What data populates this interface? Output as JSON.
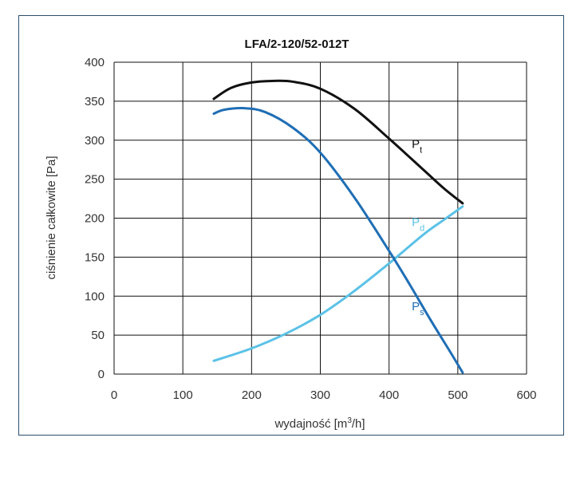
{
  "chart_data": {
    "type": "line",
    "title": "LFA/2-120/52-012T",
    "xlabel": "wydajność [m³/h]",
    "xlabel_parts": {
      "main": "wydajność [m",
      "sup": "3",
      "tail": "/h]"
    },
    "ylabel": "ciśnienie całkowite [Pa]",
    "xlim": [
      0,
      600
    ],
    "ylim": [
      0,
      400
    ],
    "x_ticks": [
      "0",
      "100",
      "200",
      "300",
      "400",
      "500",
      "600"
    ],
    "y_ticks": [
      "0",
      "50",
      "100",
      "150",
      "200",
      "250",
      "300",
      "350",
      "400"
    ],
    "grid": true,
    "series": [
      {
        "name": "Pt",
        "label_main": "P",
        "label_sub": "t",
        "color": "#111111",
        "x": [
          145,
          170,
          200,
          230,
          260,
          300,
          350,
          400,
          450,
          480,
          507
        ],
        "y": [
          353,
          367,
          374,
          376,
          375,
          366,
          340,
          302,
          262,
          238,
          219
        ]
      },
      {
        "name": "Pd",
        "label_main": "P",
        "label_sub": "d",
        "color": "#5bc2e7",
        "x": [
          145,
          200,
          250,
          300,
          350,
          400,
          450,
          480,
          507
        ],
        "y": [
          17,
          33,
          52,
          76,
          107,
          142,
          179,
          198,
          215
        ]
      },
      {
        "name": "Ps",
        "label_main": "P",
        "label_sub": "s",
        "color": "#1f6eb5",
        "x": [
          145,
          160,
          190,
          220,
          260,
          300,
          350,
          400,
          430,
          460,
          490,
          507
        ],
        "y": [
          334,
          339,
          341,
          336,
          316,
          284,
          226,
          158,
          115,
          70,
          27,
          2
        ]
      }
    ]
  }
}
